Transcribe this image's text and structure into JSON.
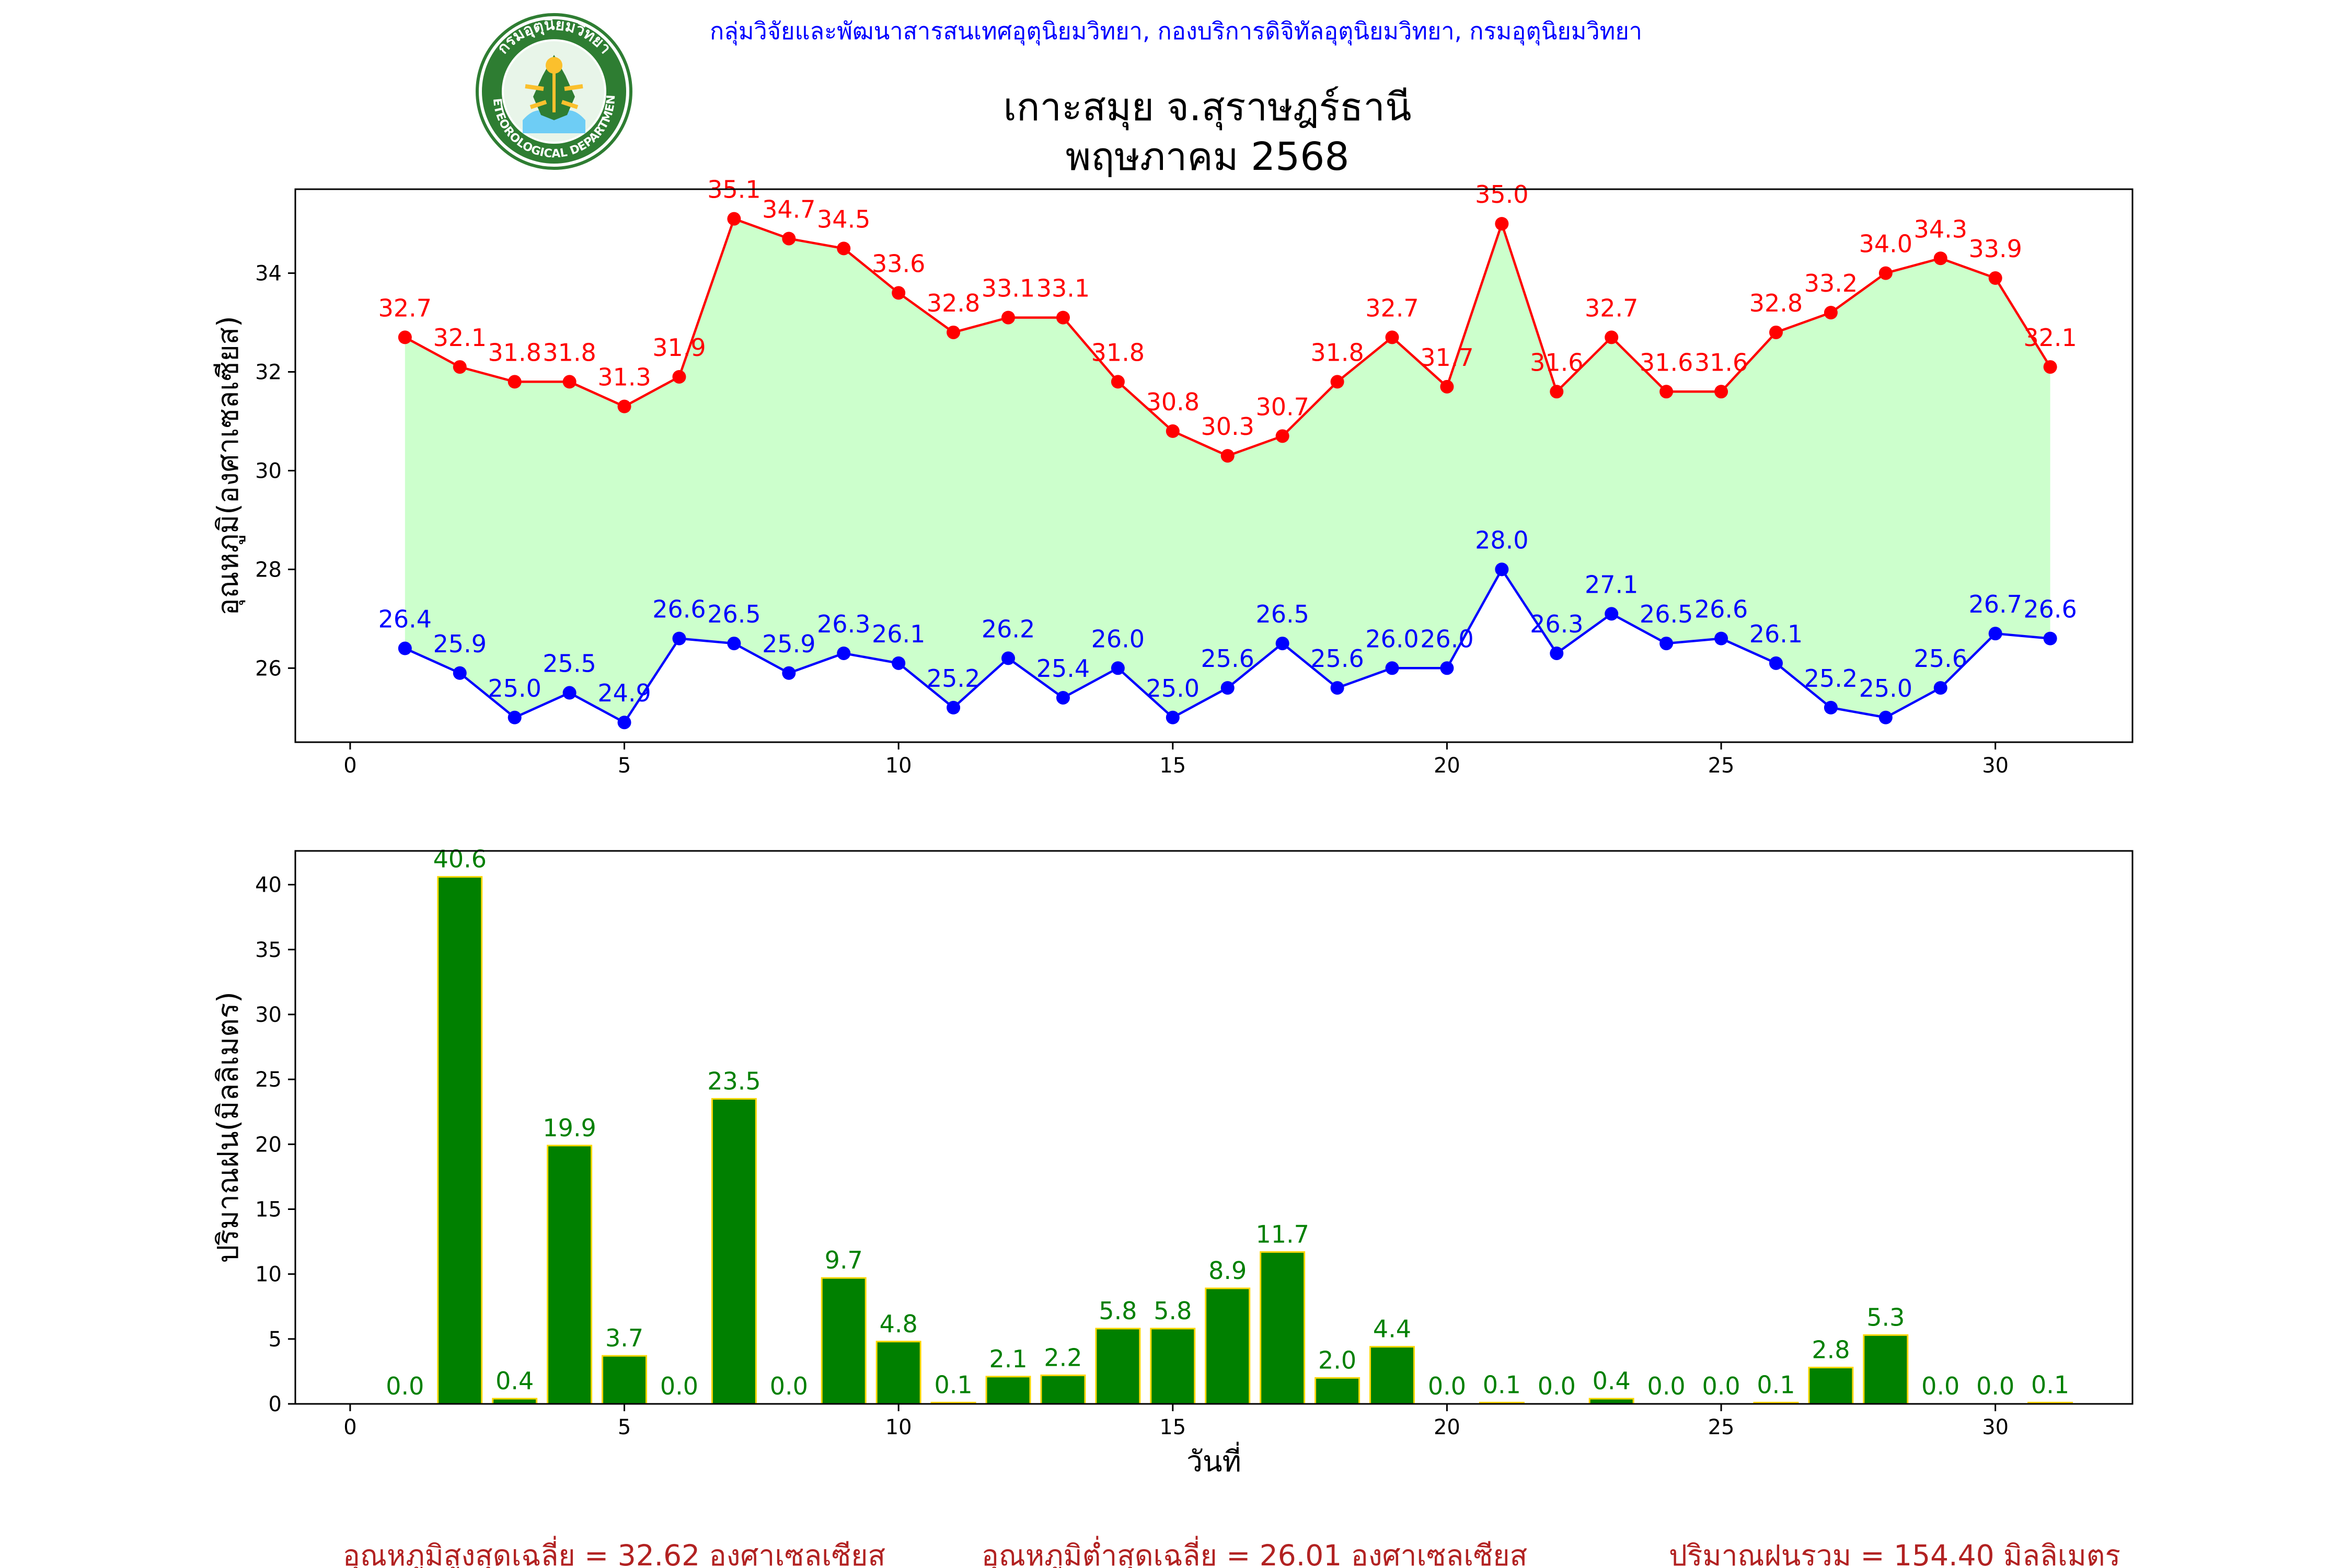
{
  "header": {
    "agency": "กลุ่มวิจัยและพัฒนาสารสนเทศอุตุนิยมวิทยา, กองบริการดิจิทัลอุตุนิยมวิทยา, กรมอุตุนิยมวิทยา",
    "title_line1": "เกาะสมุย จ.สุราษฎร์ธานี",
    "title_line2": "พฤษภาคม 2568",
    "logo_text_top": "กรมอุตุนิยมวิทยา",
    "logo_text_bottom": "METEOROLOGICAL DEPARTMENT"
  },
  "colors": {
    "max_series": "#ff0000",
    "min_series": "#0000ff",
    "fill_between": "#ccffcc",
    "rain_bar": "#008000",
    "rain_bar_edge": "#ffd700",
    "summary_text": "#b22222",
    "agency_text": "#0000ff"
  },
  "chart_data": [
    {
      "type": "line",
      "ylabel": "อุณหภูมิ(องศาเซลเซียส)",
      "xlabel": "",
      "xlim": [
        -1,
        32.5
      ],
      "ylim": [
        24.5,
        35.7
      ],
      "xticks": [
        0,
        5,
        10,
        15,
        20,
        25,
        30
      ],
      "yticks": [
        26,
        28,
        30,
        32,
        34
      ],
      "fill_between_series": true,
      "x": [
        1,
        2,
        3,
        4,
        5,
        6,
        7,
        8,
        9,
        10,
        11,
        12,
        13,
        14,
        15,
        16,
        17,
        18,
        19,
        20,
        21,
        22,
        23,
        24,
        25,
        26,
        27,
        28,
        29,
        30,
        31
      ],
      "series": [
        {
          "key": "max",
          "values": [
            32.7,
            32.1,
            31.8,
            31.8,
            31.3,
            31.9,
            35.1,
            34.7,
            34.5,
            33.6,
            32.8,
            33.1,
            33.1,
            31.8,
            30.8,
            30.3,
            30.7,
            31.8,
            32.7,
            31.7,
            35.0,
            31.6,
            32.7,
            31.6,
            31.6,
            32.8,
            33.2,
            34.0,
            34.3,
            33.9,
            32.1
          ]
        },
        {
          "key": "min",
          "values": [
            26.4,
            25.9,
            25.0,
            25.5,
            24.9,
            26.6,
            26.5,
            25.9,
            26.3,
            26.1,
            25.2,
            26.2,
            25.4,
            26.0,
            25.0,
            25.6,
            26.5,
            25.6,
            26.0,
            26.0,
            28.0,
            26.3,
            27.1,
            26.5,
            26.6,
            26.1,
            25.2,
            25.0,
            25.6,
            26.7,
            26.6
          ]
        }
      ]
    },
    {
      "type": "bar",
      "ylabel": "ปริมาณฝน(มิลลิเมตร)",
      "xlabel": "วันที่",
      "xlim": [
        -1,
        32.5
      ],
      "ylim": [
        0,
        42.6
      ],
      "xticks": [
        0,
        5,
        10,
        15,
        20,
        25,
        30
      ],
      "yticks": [
        0,
        5,
        10,
        15,
        20,
        25,
        30,
        35,
        40
      ],
      "categories": [
        1,
        2,
        3,
        4,
        5,
        6,
        7,
        8,
        9,
        10,
        11,
        12,
        13,
        14,
        15,
        16,
        17,
        18,
        19,
        20,
        21,
        22,
        23,
        24,
        25,
        26,
        27,
        28,
        29,
        30,
        31
      ],
      "values": [
        0.0,
        40.6,
        0.4,
        19.9,
        3.7,
        0.0,
        23.5,
        0.0,
        9.7,
        4.8,
        0.1,
        2.1,
        2.2,
        5.8,
        5.8,
        8.9,
        11.7,
        2.0,
        4.4,
        0.0,
        0.1,
        0.0,
        0.4,
        0.0,
        0.0,
        0.1,
        2.8,
        5.3,
        0.0,
        0.0,
        0.1
      ]
    }
  ],
  "summary": {
    "avg_max": "อุณหภูมิสูงสุดเฉลี่ย = 32.62 องศาเซลเซียส",
    "avg_min": "อุณหภูมิต่ำสุดเฉลี่ย = 26.01 องศาเซลเซียส",
    "total_rain": "ปริมาณฝนรวม = 154.40 มิลลิเมตร"
  }
}
